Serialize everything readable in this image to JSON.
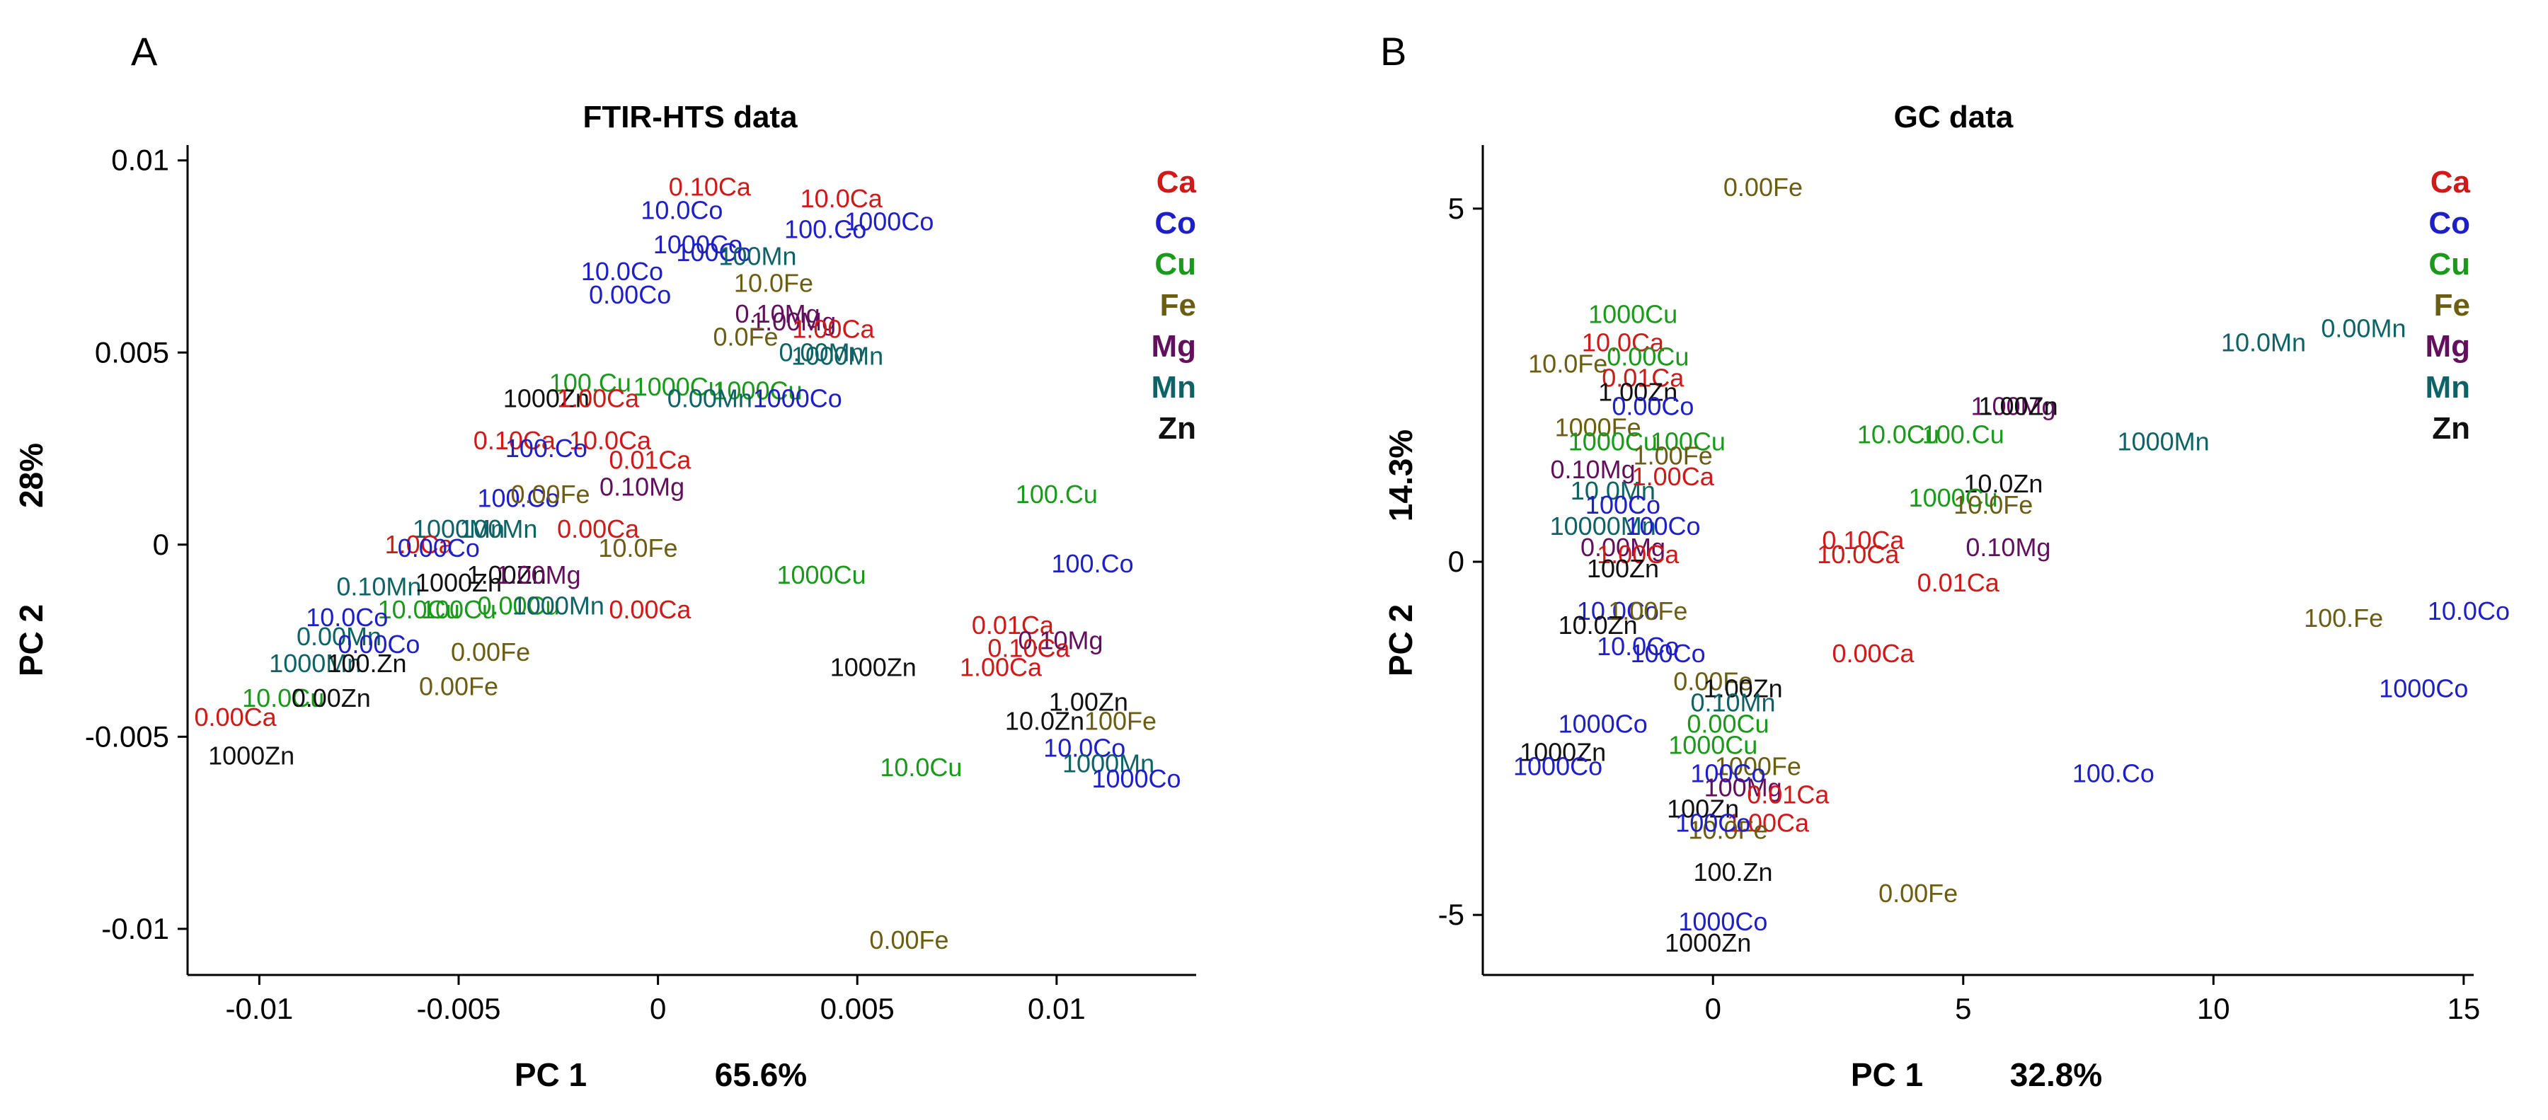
{
  "colors": {
    "Ca": "#d01919",
    "Co": "#1f1fc8",
    "Cu": "#1a9a1a",
    "Fe": "#6b5e12",
    "Mg": "#62105e",
    "Mn": "#0e6366",
    "Zn": "#111111"
  },
  "chart_data": [
    {
      "type": "scatter",
      "panel": "A",
      "title": "FTIR-HTS data",
      "xlabel": "PC 1",
      "xvar": "65.6%",
      "ylabel": "PC 2",
      "yvar": "28%",
      "xlim": [
        -0.0118,
        0.0135
      ],
      "ylim": [
        -0.0112,
        0.0104
      ],
      "xticks": [
        {
          "v": -0.01,
          "t": "-0.01"
        },
        {
          "v": -0.005,
          "t": "-0.005"
        },
        {
          "v": 0,
          "t": "0"
        },
        {
          "v": 0.005,
          "t": "0.005"
        },
        {
          "v": 0.01,
          "t": "0.01"
        }
      ],
      "yticks": [
        {
          "v": 0.01,
          "t": "0.01"
        },
        {
          "v": 0.005,
          "t": "0.005"
        },
        {
          "v": 0,
          "t": "0"
        },
        {
          "v": -0.005,
          "t": "-0.005"
        },
        {
          "v": -0.01,
          "t": "-0.01"
        }
      ],
      "legend": [
        "Ca",
        "Co",
        "Cu",
        "Fe",
        "Mg",
        "Mn",
        "Zn"
      ],
      "points": [
        {
          "x": 0.0013,
          "y": 0.0093,
          "label": "0.10Ca",
          "g": "Ca"
        },
        {
          "x": 0.0046,
          "y": 0.009,
          "label": "10.0Ca",
          "g": "Ca"
        },
        {
          "x": 0.0058,
          "y": 0.0084,
          "label": "1000Co",
          "g": "Co"
        },
        {
          "x": 0.0042,
          "y": 0.0082,
          "label": "100.Co",
          "g": "Co"
        },
        {
          "x": 0.0006,
          "y": 0.0087,
          "label": "10.0Co",
          "g": "Co"
        },
        {
          "x": 0.001,
          "y": 0.0078,
          "label": "1000Co",
          "g": "Co"
        },
        {
          "x": 0.0014,
          "y": 0.0076,
          "label": "100Co",
          "g": "Co"
        },
        {
          "x": 0.0025,
          "y": 0.0075,
          "label": "100Mn",
          "g": "Mn"
        },
        {
          "x": -0.0009,
          "y": 0.0071,
          "label": "10.0Co",
          "g": "Co"
        },
        {
          "x": -0.0007,
          "y": 0.0065,
          "label": "0.00Co",
          "g": "Co"
        },
        {
          "x": 0.0029,
          "y": 0.0068,
          "label": "10.0Fe",
          "g": "Fe"
        },
        {
          "x": 0.003,
          "y": 0.006,
          "label": "0.10Mg",
          "g": "Mg"
        },
        {
          "x": 0.0034,
          "y": 0.0058,
          "label": "1.00Mg",
          "g": "Mg"
        },
        {
          "x": 0.0044,
          "y": 0.0056,
          "label": "1.00Ca",
          "g": "Ca"
        },
        {
          "x": 0.0022,
          "y": 0.0054,
          "label": "0.0Fe",
          "g": "Fe"
        },
        {
          "x": 0.0041,
          "y": 0.005,
          "label": "0.00Mn",
          "g": "Mn"
        },
        {
          "x": 0.0045,
          "y": 0.0049,
          "label": "1000Mn",
          "g": "Mn"
        },
        {
          "x": -0.0017,
          "y": 0.0042,
          "label": "100.Cu",
          "g": "Cu"
        },
        {
          "x": 0.0005,
          "y": 0.0041,
          "label": "1000Cu",
          "g": "Cu"
        },
        {
          "x": 0.0025,
          "y": 0.004,
          "label": "1000Cu",
          "g": "Cu"
        },
        {
          "x": -0.0028,
          "y": 0.0038,
          "label": "1000Zn",
          "g": "Zn"
        },
        {
          "x": -0.0015,
          "y": 0.0038,
          "label": "1.00Ca",
          "g": "Ca"
        },
        {
          "x": 0.0013,
          "y": 0.0038,
          "label": "0.00Mn",
          "g": "Mn"
        },
        {
          "x": 0.0035,
          "y": 0.0038,
          "label": "1000Co",
          "g": "Co"
        },
        {
          "x": -0.0036,
          "y": 0.0027,
          "label": "0.10Ca",
          "g": "Ca"
        },
        {
          "x": -0.0012,
          "y": 0.0027,
          "label": "10.0Ca",
          "g": "Ca"
        },
        {
          "x": -0.0028,
          "y": 0.0025,
          "label": "100.Co",
          "g": "Co"
        },
        {
          "x": -0.0002,
          "y": 0.0022,
          "label": "0.01Ca",
          "g": "Ca"
        },
        {
          "x": -0.0035,
          "y": 0.0012,
          "label": "100.Co",
          "g": "Co"
        },
        {
          "x": -0.0027,
          "y": 0.0013,
          "label": "0.00Fe",
          "g": "Fe"
        },
        {
          "x": -0.0004,
          "y": 0.0015,
          "label": "0.10Mg",
          "g": "Mg"
        },
        {
          "x": -0.005,
          "y": 0.0004,
          "label": "1000Mn",
          "g": "Mn"
        },
        {
          "x": -0.004,
          "y": 0.0004,
          "label": "100Mn",
          "g": "Mn"
        },
        {
          "x": -0.0015,
          "y": 0.0004,
          "label": "0.00Ca",
          "g": "Ca"
        },
        {
          "x": -0.006,
          "y": 0.0,
          "label": "1.0Ca",
          "g": "Ca"
        },
        {
          "x": -0.0055,
          "y": -0.0001,
          "label": "0.00Co",
          "g": "Co"
        },
        {
          "x": -0.0005,
          "y": -0.0001,
          "label": "10.0Fe",
          "g": "Fe"
        },
        {
          "x": -0.007,
          "y": -0.0011,
          "label": "0.10Mn",
          "g": "Mn"
        },
        {
          "x": -0.005,
          "y": -0.001,
          "label": "1000Zn",
          "g": "Zn"
        },
        {
          "x": -0.0038,
          "y": -0.0008,
          "label": "1.00Zn",
          "g": "Zn"
        },
        {
          "x": -0.003,
          "y": -0.0008,
          "label": "1.00Mg",
          "g": "Mg"
        },
        {
          "x": -0.006,
          "y": -0.0017,
          "label": "10.0Cu",
          "g": "Cu"
        },
        {
          "x": -0.005,
          "y": -0.0017,
          "label": "100Cu",
          "g": "Cu"
        },
        {
          "x": -0.0035,
          "y": -0.0016,
          "label": "0.00Cu",
          "g": "Cu"
        },
        {
          "x": -0.0025,
          "y": -0.0016,
          "label": "1000Mn",
          "g": "Mn"
        },
        {
          "x": -0.0002,
          "y": -0.0017,
          "label": "0.00Ca",
          "g": "Ca"
        },
        {
          "x": -0.0078,
          "y": -0.0019,
          "label": "10.0Co",
          "g": "Co"
        },
        {
          "x": -0.008,
          "y": -0.0024,
          "label": "0.00Mn",
          "g": "Mn"
        },
        {
          "x": -0.007,
          "y": -0.0026,
          "label": "0.00Co",
          "g": "Co"
        },
        {
          "x": -0.0042,
          "y": -0.0028,
          "label": "0.00Fe",
          "g": "Fe"
        },
        {
          "x": -0.0086,
          "y": -0.0031,
          "label": "1000Mn",
          "g": "Mn"
        },
        {
          "x": -0.0073,
          "y": -0.0031,
          "label": "100.Zn",
          "g": "Zn"
        },
        {
          "x": -0.005,
          "y": -0.0037,
          "label": "0.00Fe",
          "g": "Fe"
        },
        {
          "x": -0.0094,
          "y": -0.004,
          "label": "10.0Cu",
          "g": "Cu"
        },
        {
          "x": -0.0082,
          "y": -0.004,
          "label": "0.00Zn",
          "g": "Zn"
        },
        {
          "x": -0.0106,
          "y": -0.0045,
          "label": "0.00Ca",
          "g": "Ca"
        },
        {
          "x": -0.0102,
          "y": -0.0055,
          "label": "1000Zn",
          "g": "Zn"
        },
        {
          "x": 0.01,
          "y": 0.0013,
          "label": "100.Cu",
          "g": "Cu"
        },
        {
          "x": 0.0109,
          "y": -0.0005,
          "label": "100.Co",
          "g": "Co"
        },
        {
          "x": 0.0041,
          "y": -0.0008,
          "label": "1000Cu",
          "g": "Cu"
        },
        {
          "x": 0.0089,
          "y": -0.0021,
          "label": "0.01Ca",
          "g": "Ca"
        },
        {
          "x": 0.0101,
          "y": -0.0025,
          "label": "0.10Mg",
          "g": "Mg"
        },
        {
          "x": 0.0093,
          "y": -0.0027,
          "label": "0.10Ca",
          "g": "Ca"
        },
        {
          "x": 0.0086,
          "y": -0.0032,
          "label": "1.00Ca",
          "g": "Ca"
        },
        {
          "x": 0.0054,
          "y": -0.0032,
          "label": "1000Zn",
          "g": "Zn"
        },
        {
          "x": 0.0108,
          "y": -0.0041,
          "label": "1.00Zn",
          "g": "Zn"
        },
        {
          "x": 0.0097,
          "y": -0.0046,
          "label": "10.0Zn",
          "g": "Zn"
        },
        {
          "x": 0.0116,
          "y": -0.0046,
          "label": "100Fe",
          "g": "Fe"
        },
        {
          "x": 0.0107,
          "y": -0.0053,
          "label": "10.0Co",
          "g": "Co"
        },
        {
          "x": 0.0113,
          "y": -0.0057,
          "label": "1000Mn",
          "g": "Mn"
        },
        {
          "x": 0.012,
          "y": -0.0061,
          "label": "1000Co",
          "g": "Co"
        },
        {
          "x": 0.0066,
          "y": -0.0058,
          "label": "10.0Cu",
          "g": "Cu"
        },
        {
          "x": 0.0063,
          "y": -0.0103,
          "label": "0.00Fe",
          "g": "Fe"
        }
      ]
    },
    {
      "type": "scatter",
      "panel": "B",
      "title": "GC data",
      "xlabel": "PC 1",
      "xvar": "32.8%",
      "ylabel": "PC 2",
      "yvar": "14.3%",
      "xlim": [
        -4.6,
        15.2
      ],
      "ylim": [
        -5.85,
        5.9
      ],
      "xticks": [
        {
          "v": 0,
          "t": "0"
        },
        {
          "v": 5,
          "t": "5"
        },
        {
          "v": 10,
          "t": "10"
        },
        {
          "v": 15,
          "t": "15"
        }
      ],
      "yticks": [
        {
          "v": 5,
          "t": "5"
        },
        {
          "v": 0,
          "t": "0"
        },
        {
          "v": -5,
          "t": "-5"
        }
      ],
      "legend": [
        "Ca",
        "Co",
        "Cu",
        "Fe",
        "Mg",
        "Mn",
        "Zn"
      ],
      "points": [
        {
          "x": 1.0,
          "y": 5.3,
          "label": "0.00Fe",
          "g": "Fe"
        },
        {
          "x": -1.6,
          "y": 3.5,
          "label": "1000Cu",
          "g": "Cu"
        },
        {
          "x": -1.8,
          "y": 3.1,
          "label": "10.0Ca",
          "g": "Ca"
        },
        {
          "x": -2.9,
          "y": 2.8,
          "label": "10.0Fe",
          "g": "Fe"
        },
        {
          "x": -1.3,
          "y": 2.9,
          "label": "0.00Cu",
          "g": "Cu"
        },
        {
          "x": -1.4,
          "y": 2.6,
          "label": "0.01Ca",
          "g": "Ca"
        },
        {
          "x": -1.5,
          "y": 2.4,
          "label": "1.00Zn",
          "g": "Zn"
        },
        {
          "x": -1.2,
          "y": 2.2,
          "label": "0.00Co",
          "g": "Co"
        },
        {
          "x": -2.3,
          "y": 1.9,
          "label": "1000Fe",
          "g": "Fe"
        },
        {
          "x": -2.0,
          "y": 1.7,
          "label": "1000Cu",
          "g": "Cu"
        },
        {
          "x": -0.5,
          "y": 1.7,
          "label": "100Cu",
          "g": "Cu"
        },
        {
          "x": -0.8,
          "y": 1.5,
          "label": "1.00Fe",
          "g": "Fe"
        },
        {
          "x": -2.4,
          "y": 1.3,
          "label": "0.10Mg",
          "g": "Mg"
        },
        {
          "x": -2.0,
          "y": 1.0,
          "label": "10.0Mn",
          "g": "Mn"
        },
        {
          "x": -0.8,
          "y": 1.2,
          "label": "1.00Ca",
          "g": "Ca"
        },
        {
          "x": -1.8,
          "y": 0.8,
          "label": "100Co",
          "g": "Co"
        },
        {
          "x": -2.2,
          "y": 0.5,
          "label": "10000Mn",
          "g": "Mn"
        },
        {
          "x": -1.0,
          "y": 0.5,
          "label": "100Co",
          "g": "Co"
        },
        {
          "x": -1.8,
          "y": 0.2,
          "label": "0.00Mg",
          "g": "Mg"
        },
        {
          "x": -1.5,
          "y": 0.1,
          "label": "1.00Ca",
          "g": "Ca"
        },
        {
          "x": -1.8,
          "y": -0.1,
          "label": "100Zn",
          "g": "Zn"
        },
        {
          "x": 6.0,
          "y": 2.2,
          "label": "1.00Mg",
          "g": "Mg"
        },
        {
          "x": 6.1,
          "y": 2.2,
          "label": "1.00Zn",
          "g": "Zn"
        },
        {
          "x": 3.7,
          "y": 1.8,
          "label": "10.0Cu",
          "g": "Cu"
        },
        {
          "x": 5.0,
          "y": 1.8,
          "label": "100.Cu",
          "g": "Cu"
        },
        {
          "x": 5.8,
          "y": 1.1,
          "label": "10.0Zn",
          "g": "Zn"
        },
        {
          "x": 4.8,
          "y": 0.9,
          "label": "1000Cu",
          "g": "Cu"
        },
        {
          "x": 5.6,
          "y": 0.8,
          "label": "10.0Fe",
          "g": "Fe"
        },
        {
          "x": 3.0,
          "y": 0.3,
          "label": "0.10Ca",
          "g": "Ca"
        },
        {
          "x": 5.9,
          "y": 0.2,
          "label": "0.10Mg",
          "g": "Mg"
        },
        {
          "x": 2.9,
          "y": 0.1,
          "label": "10.0Ca",
          "g": "Ca"
        },
        {
          "x": 4.9,
          "y": -0.3,
          "label": "0.01Ca",
          "g": "Ca"
        },
        {
          "x": 11.0,
          "y": 3.1,
          "label": "10.0Mn",
          "g": "Mn"
        },
        {
          "x": 13.0,
          "y": 3.3,
          "label": "0.00Mn",
          "g": "Mn"
        },
        {
          "x": 9.0,
          "y": 1.7,
          "label": "1000Mn",
          "g": "Mn"
        },
        {
          "x": 12.6,
          "y": -0.8,
          "label": "100.Fe",
          "g": "Fe"
        },
        {
          "x": 15.1,
          "y": -0.7,
          "label": "10.0Co",
          "g": "Co"
        },
        {
          "x": 14.2,
          "y": -1.8,
          "label": "1000Co",
          "g": "Co"
        },
        {
          "x": 8.0,
          "y": -3.0,
          "label": "100.Co",
          "g": "Co"
        },
        {
          "x": -1.9,
          "y": -0.7,
          "label": "10.0Co",
          "g": "Co"
        },
        {
          "x": -1.3,
          "y": -0.7,
          "label": "1.00Fe",
          "g": "Fe"
        },
        {
          "x": -2.3,
          "y": -0.9,
          "label": "10.0Zn",
          "g": "Zn"
        },
        {
          "x": -1.5,
          "y": -1.2,
          "label": "10.0Co",
          "g": "Co"
        },
        {
          "x": -0.9,
          "y": -1.3,
          "label": "100Co",
          "g": "Co"
        },
        {
          "x": 3.2,
          "y": -1.3,
          "label": "0.00Ca",
          "g": "Ca"
        },
        {
          "x": 0.0,
          "y": -1.7,
          "label": "0.00Fe",
          "g": "Fe"
        },
        {
          "x": 0.6,
          "y": -1.8,
          "label": "1.00Zn",
          "g": "Zn"
        },
        {
          "x": 0.4,
          "y": -2.0,
          "label": "0.10Mn",
          "g": "Mn"
        },
        {
          "x": -2.2,
          "y": -2.3,
          "label": "1000Co",
          "g": "Co"
        },
        {
          "x": 0.3,
          "y": -2.3,
          "label": "0.00Cu",
          "g": "Cu"
        },
        {
          "x": 0.0,
          "y": -2.6,
          "label": "1000Cu",
          "g": "Cu"
        },
        {
          "x": -3.0,
          "y": -2.7,
          "label": "1000Zn",
          "g": "Zn"
        },
        {
          "x": -3.1,
          "y": -2.9,
          "label": "1000Co",
          "g": "Co"
        },
        {
          "x": 0.9,
          "y": -2.9,
          "label": "1000Fe",
          "g": "Fe"
        },
        {
          "x": 0.3,
          "y": -3.0,
          "label": "100Co",
          "g": "Co"
        },
        {
          "x": 0.6,
          "y": -3.2,
          "label": "100Mg",
          "g": "Mg"
        },
        {
          "x": 1.5,
          "y": -3.3,
          "label": "0.01Ca",
          "g": "Ca"
        },
        {
          "x": -0.2,
          "y": -3.5,
          "label": "100Zn",
          "g": "Zn"
        },
        {
          "x": 1.1,
          "y": -3.7,
          "label": "1.00Ca",
          "g": "Ca"
        },
        {
          "x": 0.3,
          "y": -3.8,
          "label": "10.0Fe",
          "g": "Fe"
        },
        {
          "x": 0.0,
          "y": -3.7,
          "label": "100Co",
          "g": "Co"
        },
        {
          "x": 0.4,
          "y": -4.4,
          "label": "100.Zn",
          "g": "Zn"
        },
        {
          "x": 4.1,
          "y": -4.7,
          "label": "0.00Fe",
          "g": "Fe"
        },
        {
          "x": 0.2,
          "y": -5.1,
          "label": "1000Co",
          "g": "Co"
        },
        {
          "x": -0.1,
          "y": -5.4,
          "label": "1000Zn",
          "g": "Zn"
        }
      ]
    }
  ]
}
